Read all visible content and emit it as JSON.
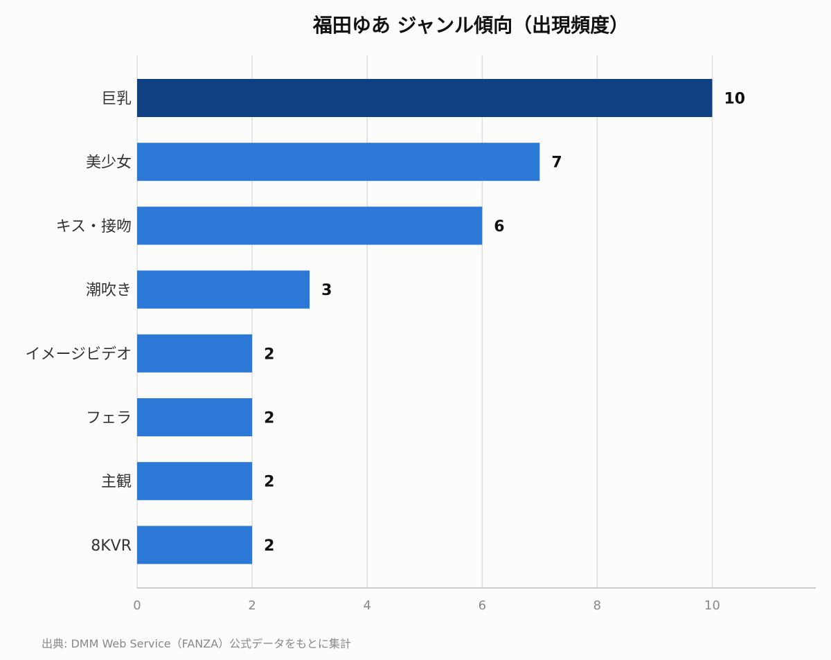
{
  "chart_data": {
    "type": "bar",
    "orientation": "horizontal",
    "title": "福田ゆあ ジャンル傾向（出現頻度）",
    "categories": [
      "巨乳",
      "美少女",
      "キス・接吻",
      "潮吹き",
      "イメージビデオ",
      "フェラ",
      "主観",
      "8KVR"
    ],
    "values": [
      10,
      7,
      6,
      3,
      2,
      2,
      2,
      2
    ],
    "xlim": [
      0,
      11.8
    ],
    "xticks": [
      0,
      2,
      4,
      6,
      8,
      10
    ],
    "xlabel": "",
    "ylabel": "",
    "grid": "vertical",
    "legend": "none",
    "colors": {
      "highlight": "#0f4182",
      "bar": "#2b78d6"
    }
  },
  "source": "出典: DMM Web Service（FANZA）公式データをもとに集計"
}
